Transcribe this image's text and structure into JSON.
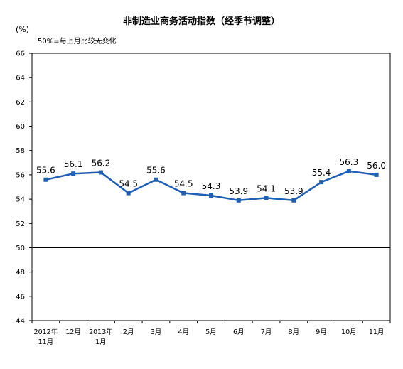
{
  "chart_data": {
    "type": "line",
    "title": "非制造业商务活动指数（经季节调整）",
    "ylabel": "(%)",
    "annotation": "50%=与上月比较无变化",
    "categories": [
      [
        "2012年",
        "11月"
      ],
      [
        "12月"
      ],
      [
        "2013年",
        "1月"
      ],
      [
        "2月"
      ],
      [
        "3月"
      ],
      [
        "4月"
      ],
      [
        "5月"
      ],
      [
        "6月"
      ],
      [
        "7月"
      ],
      [
        "8月"
      ],
      [
        "9月"
      ],
      [
        "10月"
      ],
      [
        "11月"
      ]
    ],
    "values": [
      55.6,
      56.1,
      56.2,
      54.5,
      55.6,
      54.5,
      54.3,
      53.9,
      54.1,
      53.9,
      55.4,
      56.3,
      56.0
    ],
    "data_labels": [
      "55.6",
      "56.1",
      "56.2",
      "54.5",
      "55.6",
      "54.5",
      "54.3",
      "53.9",
      "54.1",
      "53.9",
      "55.4",
      "56.3",
      "56.0"
    ],
    "ylim": [
      44,
      66
    ],
    "yticks": [
      44,
      46,
      48,
      50,
      52,
      54,
      56,
      58,
      60,
      62,
      64,
      66
    ],
    "reference_line": 50,
    "grid": false,
    "colors": {
      "line": "#1f5fb4",
      "marker": "#1f5fb4",
      "axis": "#000000"
    }
  }
}
